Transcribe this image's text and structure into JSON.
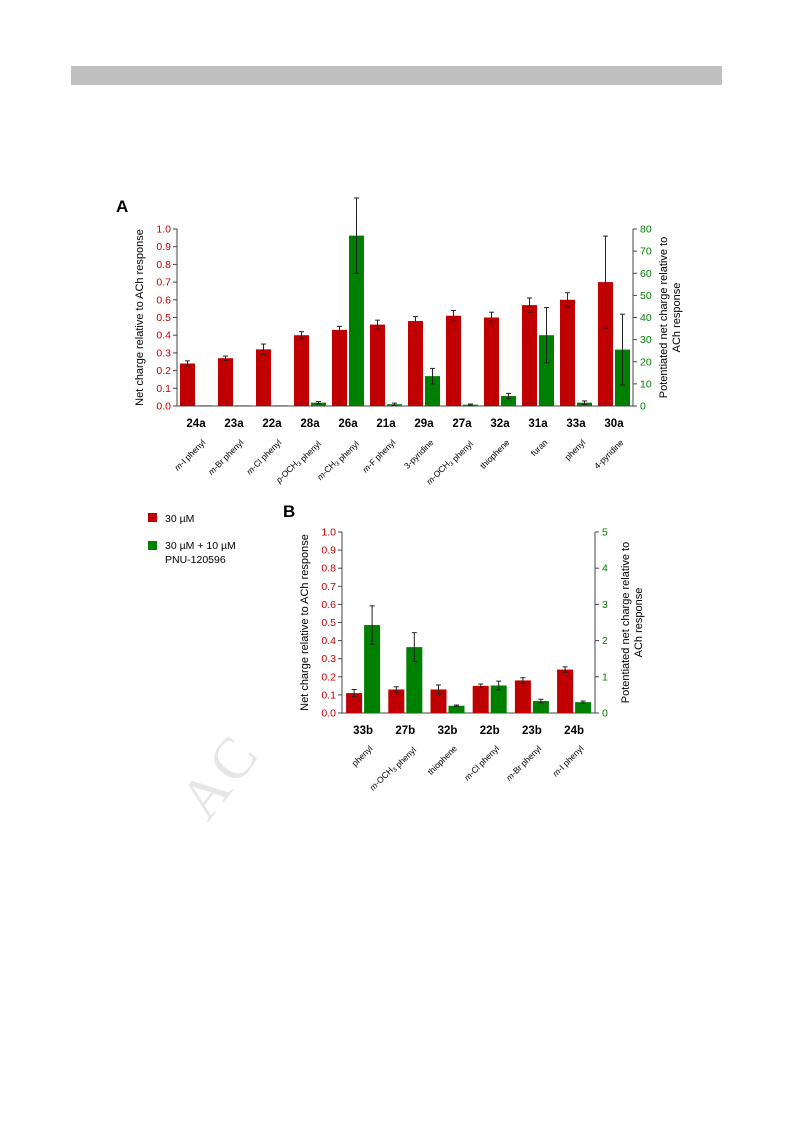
{
  "watermark": "AC",
  "colors": {
    "red": "#c00000",
    "green": "#008000",
    "axis": "#444444"
  },
  "legend": [
    {
      "label": "30 µM",
      "color": "#c00000"
    },
    {
      "label": "30 µM + 10 µM",
      "label2": "PNU-120596",
      "color": "#008000"
    }
  ],
  "chart_data": [
    {
      "panel": "A",
      "type": "bar",
      "ylabel_left": "Net charge relative to ACh response",
      "ylabel_right": [
        "Potentiated net charge relative to",
        "ACh response"
      ],
      "ylim_left": [
        0,
        1.0
      ],
      "yticks_left": [
        "0.0",
        "0.1",
        "0.2",
        "0.3",
        "0.4",
        "0.5",
        "0.6",
        "0.7",
        "0.8",
        "0.9",
        "1.0"
      ],
      "ylim_right": [
        0,
        80
      ],
      "yticks_right": [
        "0",
        "10",
        "20",
        "30",
        "40",
        "50",
        "60",
        "70",
        "80"
      ],
      "categories": [
        "24a",
        "23a",
        "22a",
        "28a",
        "26a",
        "21a",
        "29a",
        "27a",
        "32a",
        "31a",
        "33a",
        "30a"
      ],
      "substituents": [
        "m-I phenyl",
        "m-Br phenyl",
        "m-Cl phenyl",
        "p-OCH3 phenyl",
        "m-CH3 phenyl",
        "m-F phenyl",
        "3-pyridine",
        "m-OCH3 phenyl",
        "thiophene",
        "furan",
        "phenyl",
        "4-pyridine"
      ],
      "series": [
        {
          "axis": "left",
          "color": "#c00000",
          "values": [
            0.24,
            0.27,
            0.32,
            0.4,
            0.43,
            0.46,
            0.48,
            0.51,
            0.5,
            0.57,
            0.6,
            0.7
          ],
          "errors": [
            0.015,
            0.012,
            0.03,
            0.02,
            0.02,
            0.025,
            0.025,
            0.03,
            0.03,
            0.04,
            0.04,
            0.26
          ]
        },
        {
          "axis": "right",
          "color": "#008000",
          "values": [
            0.3,
            0.3,
            0.3,
            1.5,
            77,
            0.8,
            13.5,
            0.6,
            4.5,
            32,
            1.5,
            25.5
          ],
          "errors": [
            0,
            0,
            0,
            0.5,
            17,
            0.5,
            3.5,
            0.3,
            1.2,
            12.5,
            0.8,
            16
          ]
        }
      ]
    },
    {
      "panel": "B",
      "type": "bar",
      "ylabel_left": "Net charge relative to ACh response",
      "ylabel_right": [
        "Potentiated net charge relative to",
        "ACh response"
      ],
      "ylim_left": [
        0,
        1.0
      ],
      "yticks_left": [
        "0.0",
        "0.1",
        "0.2",
        "0.3",
        "0.4",
        "0.5",
        "0.6",
        "0.7",
        "0.8",
        "0.9",
        "1.0"
      ],
      "ylim_right": [
        0,
        5
      ],
      "yticks_right": [
        "0",
        "1",
        "2",
        "3",
        "4",
        "5"
      ],
      "categories": [
        "33b",
        "27b",
        "32b",
        "22b",
        "23b",
        "24b"
      ],
      "substituents": [
        "phenyl",
        "m-OCH3 phenyl",
        "thiophene",
        "m-Cl phenyl",
        "m-Br phenyl",
        "m-I phenyl"
      ],
      "series": [
        {
          "axis": "left",
          "color": "#c00000",
          "values": [
            0.11,
            0.13,
            0.13,
            0.15,
            0.18,
            0.24
          ],
          "errors": [
            0.02,
            0.015,
            0.025,
            0.01,
            0.015,
            0.015
          ]
        },
        {
          "axis": "right",
          "color": "#008000",
          "values": [
            2.43,
            1.82,
            0.2,
            0.76,
            0.33,
            0.3
          ],
          "errors": [
            0.53,
            0.4,
            0.02,
            0.12,
            0.05,
            0.03
          ]
        }
      ]
    }
  ]
}
